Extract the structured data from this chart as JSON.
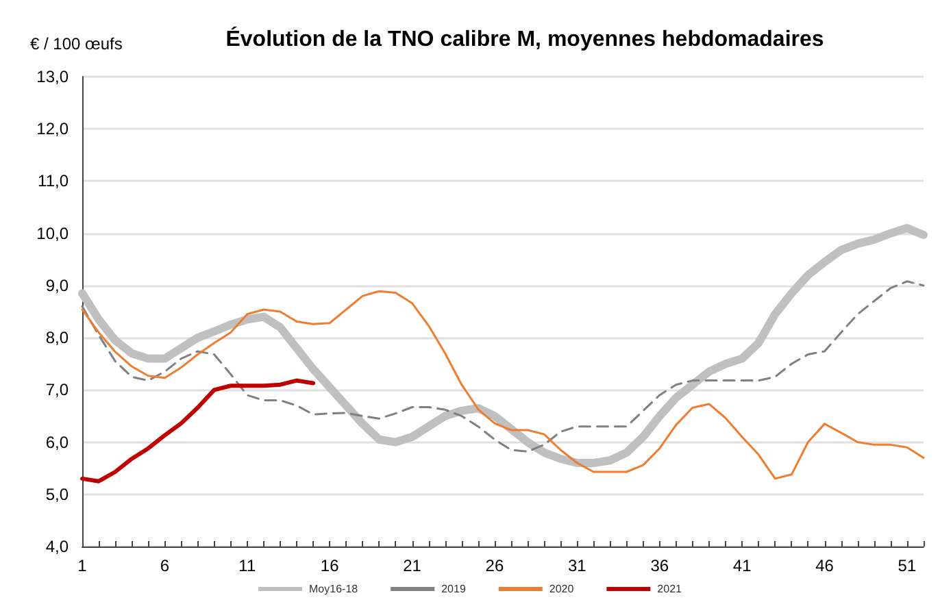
{
  "chart_data": {
    "type": "line",
    "title": "Évolution de la TNO calibre M, moyennes hebdomadaires",
    "ylabel": "€ / 100 œufs",
    "x": [
      1,
      2,
      3,
      4,
      5,
      6,
      7,
      8,
      9,
      10,
      11,
      12,
      13,
      14,
      15,
      16,
      17,
      18,
      19,
      20,
      21,
      22,
      23,
      24,
      25,
      26,
      27,
      28,
      29,
      30,
      31,
      32,
      33,
      34,
      35,
      36,
      37,
      38,
      39,
      40,
      41,
      42,
      43,
      44,
      45,
      46,
      47,
      48,
      49,
      50,
      51,
      52
    ],
    "series": [
      {
        "name": "Moy16-18",
        "color": "#c0c0c0",
        "line_style": "solid",
        "values": [
          8.85,
          8.35,
          7.95,
          7.7,
          7.6,
          7.6,
          7.8,
          8.0,
          8.12,
          8.25,
          8.35,
          8.4,
          8.2,
          7.8,
          7.4,
          7.05,
          6.7,
          6.35,
          6.05,
          6.0,
          6.1,
          6.3,
          6.5,
          6.6,
          6.65,
          6.5,
          6.25,
          6.0,
          5.8,
          5.68,
          5.6,
          5.6,
          5.65,
          5.8,
          6.1,
          6.5,
          6.85,
          7.1,
          7.35,
          7.5,
          7.6,
          7.9,
          8.45,
          8.85,
          9.2,
          9.45,
          9.68,
          9.8,
          9.88,
          10.0,
          10.1,
          9.97
        ]
      },
      {
        "name": "2019",
        "color": "#808080",
        "line_style": "dashed",
        "values": [
          8.6,
          8.05,
          7.55,
          7.25,
          7.18,
          7.35,
          7.6,
          7.74,
          7.68,
          7.3,
          6.9,
          6.8,
          6.8,
          6.7,
          6.53,
          6.55,
          6.56,
          6.5,
          6.45,
          6.55,
          6.67,
          6.67,
          6.62,
          6.5,
          6.3,
          6.05,
          5.85,
          5.82,
          5.95,
          6.2,
          6.3,
          6.3,
          6.3,
          6.3,
          6.6,
          6.9,
          7.1,
          7.18,
          7.18,
          7.18,
          7.18,
          7.18,
          7.25,
          7.5,
          7.68,
          7.74,
          8.1,
          8.45,
          8.7,
          8.95,
          9.08,
          9.0
        ]
      },
      {
        "name": "2020",
        "color": "#ed7d31",
        "line_style": "solid",
        "values": [
          8.54,
          8.1,
          7.73,
          7.45,
          7.27,
          7.23,
          7.43,
          7.68,
          7.9,
          8.1,
          8.45,
          8.54,
          8.5,
          8.31,
          8.26,
          8.28,
          8.54,
          8.8,
          8.89,
          8.86,
          8.66,
          8.23,
          7.7,
          7.1,
          6.63,
          6.36,
          6.23,
          6.23,
          6.15,
          5.85,
          5.6,
          5.43,
          5.43,
          5.43,
          5.56,
          5.88,
          6.33,
          6.66,
          6.73,
          6.46,
          6.1,
          5.76,
          5.3,
          5.38,
          6.0,
          6.35,
          6.18,
          6.0,
          5.95,
          5.95,
          5.9,
          5.7
        ]
      },
      {
        "name": "2021",
        "color": "#c00000",
        "line_style": "solid",
        "values": [
          5.3,
          5.25,
          5.43,
          5.68,
          5.88,
          6.13,
          6.36,
          6.66,
          7.0,
          7.08,
          7.08,
          7.08,
          7.1,
          7.18,
          7.13,
          null,
          null,
          null,
          null,
          null,
          null,
          null,
          null,
          null,
          null,
          null,
          null,
          null,
          null,
          null,
          null,
          null,
          null,
          null,
          null,
          null,
          null,
          null,
          null,
          null,
          null,
          null,
          null,
          null,
          null,
          null,
          null,
          null,
          null,
          null,
          null,
          null
        ]
      }
    ],
    "xlim": [
      1,
      52
    ],
    "xticks": [
      1,
      {
        "value": 2,
        "label": null
      },
      {
        "value": 3,
        "label": null
      },
      {
        "value": 4,
        "label": null
      },
      {
        "value": 5,
        "label": null
      },
      6,
      {
        "value": 7,
        "label": null
      },
      {
        "value": 8,
        "label": null
      },
      {
        "value": 9,
        "label": null
      },
      {
        "value": 10,
        "label": null
      },
      11,
      {
        "value": 12,
        "label": null
      },
      {
        "value": 13,
        "label": null
      },
      {
        "value": 14,
        "label": null
      },
      {
        "value": 15,
        "label": null
      },
      16,
      {
        "value": 17,
        "label": null
      },
      {
        "value": 18,
        "label": null
      },
      {
        "value": 19,
        "label": null
      },
      {
        "value": 20,
        "label": null
      },
      21,
      {
        "value": 22,
        "label": null
      },
      {
        "value": 23,
        "label": null
      },
      {
        "value": 24,
        "label": null
      },
      {
        "value": 25,
        "label": null
      },
      26,
      {
        "value": 27,
        "label": null
      },
      {
        "value": 28,
        "label": null
      },
      {
        "value": 29,
        "label": null
      },
      {
        "value": 30,
        "label": null
      },
      31,
      {
        "value": 32,
        "label": null
      },
      {
        "value": 33,
        "label": null
      },
      {
        "value": 34,
        "label": null
      },
      {
        "value": 35,
        "label": null
      },
      36,
      {
        "value": 37,
        "label": null
      },
      {
        "value": 38,
        "label": null
      },
      {
        "value": 39,
        "label": null
      },
      {
        "value": 40,
        "label": null
      },
      41,
      {
        "value": 42,
        "label": null
      },
      {
        "value": 43,
        "label": null
      },
      {
        "value": 44,
        "label": null
      },
      {
        "value": 45,
        "label": null
      },
      46,
      {
        "value": 47,
        "label": null
      },
      {
        "value": 48,
        "label": null
      },
      {
        "value": 49,
        "label": null
      },
      {
        "value": 50,
        "label": null
      },
      51,
      {
        "value": 52,
        "label": null
      }
    ],
    "ylim": [
      4,
      13
    ],
    "yticks": [
      {
        "value": 4,
        "label": "4,0"
      },
      {
        "value": 5,
        "label": "5,0"
      },
      {
        "value": 6,
        "label": "6,0"
      },
      {
        "value": 7,
        "label": "7,0"
      },
      {
        "value": 8,
        "label": "8,0"
      },
      {
        "value": 9,
        "label": "9,0"
      },
      {
        "value": 10,
        "label": "10,0"
      },
      {
        "value": 11,
        "label": "11,0"
      },
      {
        "value": 12,
        "label": "12,0"
      },
      {
        "value": 13,
        "label": "13,0"
      }
    ],
    "grid": "y",
    "legend": "bottom",
    "marker": "none"
  }
}
